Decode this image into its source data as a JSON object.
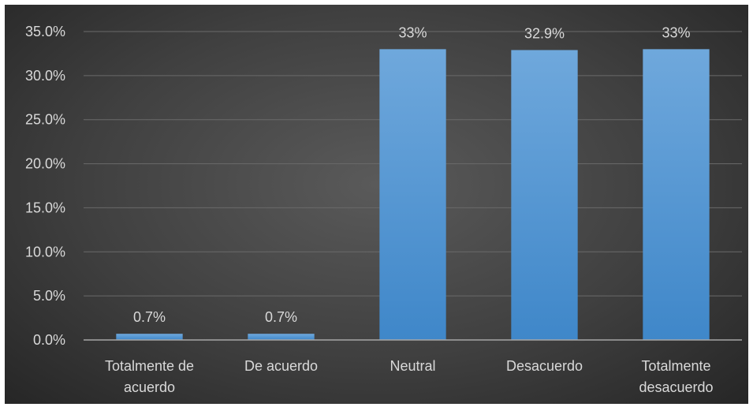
{
  "chart_data": {
    "type": "bar",
    "title": "",
    "xlabel": "",
    "ylabel": "",
    "categories": [
      "Totalmente de acuerdo",
      "De acuerdo",
      "Neutral",
      "Desacuerdo",
      "Totalmente desacuerdo"
    ],
    "category_lines": [
      [
        "Totalmente de",
        "acuerdo"
      ],
      [
        "De acuerdo"
      ],
      [
        "Neutral"
      ],
      [
        "Desacuerdo"
      ],
      [
        "Totalmente",
        "desacuerdo"
      ]
    ],
    "values": [
      0.7,
      0.7,
      33.0,
      32.9,
      33.0
    ],
    "data_labels": [
      "0.7%",
      "0.7%",
      "33%",
      "32.9%",
      "33%"
    ],
    "ylim": [
      0,
      35
    ],
    "yticks": [
      0,
      5,
      10,
      15,
      20,
      25,
      30,
      35
    ],
    "ytick_labels": [
      "0.0%",
      "5.0%",
      "10.0%",
      "15.0%",
      "20.0%",
      "25.0%",
      "30.0%",
      "35.0%"
    ],
    "grid": true,
    "legend": "none",
    "colors": {
      "bar_top": "#6fa8dc",
      "bar_bottom": "#3f87c9",
      "text": "#d9d9d9",
      "grid": "#6a6a6a",
      "background": "#404040"
    }
  }
}
